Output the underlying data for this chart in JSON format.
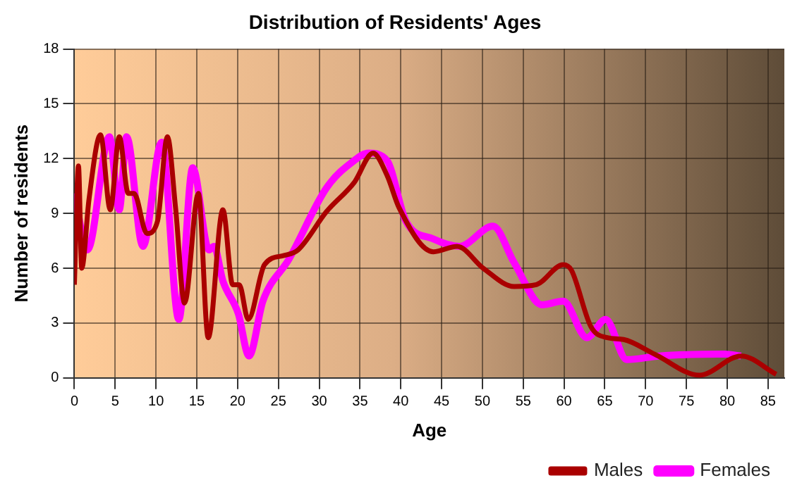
{
  "chart_data": {
    "type": "line",
    "title": "Distribution of Residents' Ages",
    "xlabel": "Age",
    "ylabel": "Number of residents",
    "xlim": [
      0,
      87
    ],
    "xticks": [
      0,
      5,
      10,
      15,
      20,
      25,
      30,
      35,
      40,
      45,
      50,
      55,
      60,
      65,
      70,
      75,
      80,
      85
    ],
    "ylim": [
      0,
      18
    ],
    "yticks": [
      0,
      3,
      6,
      9,
      12,
      15,
      18
    ],
    "grid": true,
    "legend": "bottom right",
    "marker": "none",
    "line_style": "solid",
    "series": [
      {
        "name": "Males",
        "color": "#aa0000",
        "x": [
          0,
          0.5,
          0.9,
          1.8,
          3.2,
          4.4,
          5.5,
          6.6,
          7.3,
          8.9,
          10.2,
          11.4,
          12.4,
          13.5,
          15.2,
          16.4,
          18.2,
          19.4,
          20.2,
          21.3,
          23.3,
          25.7,
          27.4,
          30.9,
          34.3,
          36.6,
          38.3,
          39.8,
          44.0,
          46.9,
          50.1,
          53.9,
          56.6,
          59.9,
          60.9,
          63.3,
          65.3,
          67.3,
          71.1,
          76.6,
          81.7,
          86.0
        ],
        "values": [
          5.1,
          11.6,
          6.0,
          9.8,
          13.3,
          9.2,
          13.2,
          10.1,
          10.1,
          7.9,
          8.6,
          13.2,
          9.3,
          4.1,
          10.1,
          2.2,
          9.2,
          5.1,
          5.1,
          3.2,
          6.2,
          6.7,
          7.0,
          9.1,
          10.7,
          12.3,
          11.1,
          9.3,
          6.9,
          7.2,
          6.0,
          5.0,
          5.1,
          6.2,
          5.9,
          2.8,
          2.2,
          2.1,
          1.3,
          0.15,
          1.2,
          0.2
        ]
      },
      {
        "name": "Females",
        "color": "#ff00ff",
        "x": [
          0,
          1.6,
          4.3,
          5.5,
          6.4,
          8.4,
          10.7,
          12.8,
          14.5,
          16.5,
          17.1,
          18.2,
          20.1,
          21.4,
          23.1,
          26.3,
          30.9,
          34.3,
          36.0,
          38.3,
          40.6,
          44.0,
          47.2,
          51.3,
          53.9,
          57.3,
          59.9,
          62.8,
          65.1,
          67.7,
          71.7,
          79.7,
          81.7
        ],
        "values": [
          10.1,
          7.0,
          13.2,
          9.2,
          13.2,
          7.2,
          12.9,
          3.2,
          11.5,
          7.0,
          7.2,
          5.3,
          3.5,
          1.2,
          4.2,
          6.5,
          10.4,
          11.9,
          12.3,
          11.9,
          8.6,
          7.6,
          7.2,
          8.3,
          6.3,
          4.0,
          4.2,
          2.2,
          3.2,
          1.0,
          1.2,
          1.3,
          1.2
        ]
      }
    ]
  }
}
